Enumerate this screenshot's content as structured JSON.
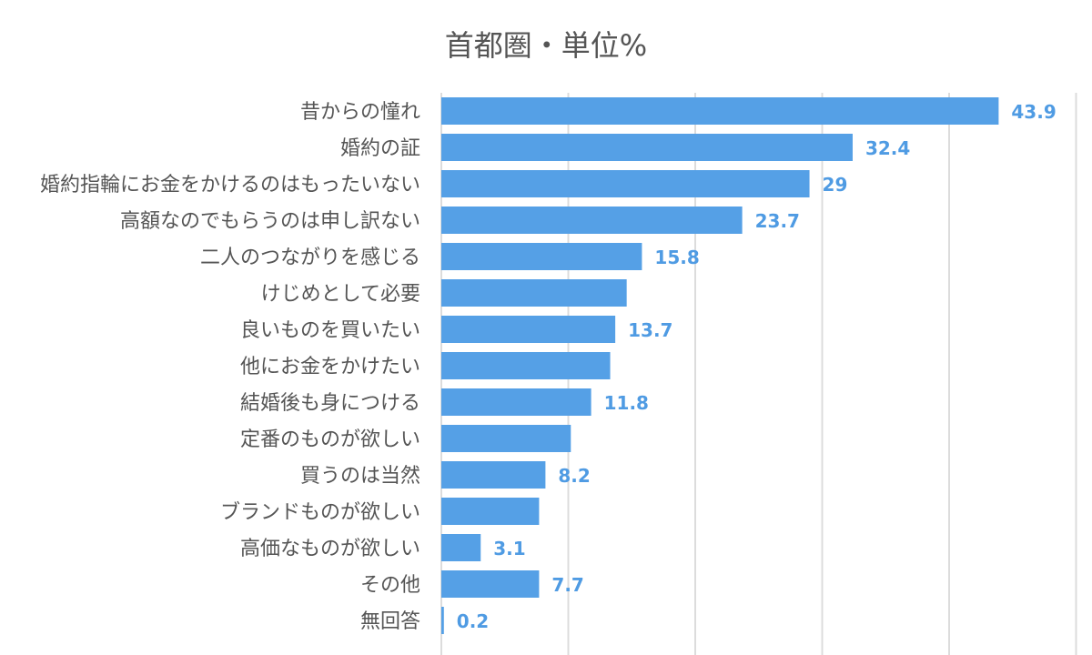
{
  "subtitle": "首都圏・単位%",
  "colors": {
    "bar": "#55a0e6",
    "value_label": "#4f9be3",
    "grid": "#dcdcdc",
    "text": "#555555"
  },
  "chart_data": {
    "type": "bar",
    "orientation": "horizontal",
    "title": "",
    "subtitle": "首都圏・単位%",
    "xlabel": "",
    "ylabel": "",
    "xlim": [
      0,
      50
    ],
    "grid": true,
    "categories": [
      "昔からの憧れ",
      "婚約の証",
      "婚約指輪にお金をかけるのはもったいない",
      "高額なのでもらうのは申し訳ない",
      "二人のつながりを感じる",
      "けじめとして必要",
      "良いものを買いたい",
      "他にお金をかけたい",
      "結婚後も身につける",
      "定番のものが欲しい",
      "買うのは当然",
      "ブランドものが欲しい",
      "高価なものが欲しい",
      "その他",
      "無回答"
    ],
    "values": [
      43.9,
      32.4,
      29,
      23.7,
      15.8,
      14.6,
      13.7,
      13.3,
      11.8,
      10.2,
      8.2,
      7.7,
      3.1,
      7.7,
      0.2
    ],
    "value_labels": [
      "43.9",
      "32.4",
      "29",
      "23.7",
      "15.8",
      "",
      "13.7",
      "",
      "11.8",
      "",
      "8.2",
      "",
      "3.1",
      "7.7",
      "0.2"
    ]
  }
}
